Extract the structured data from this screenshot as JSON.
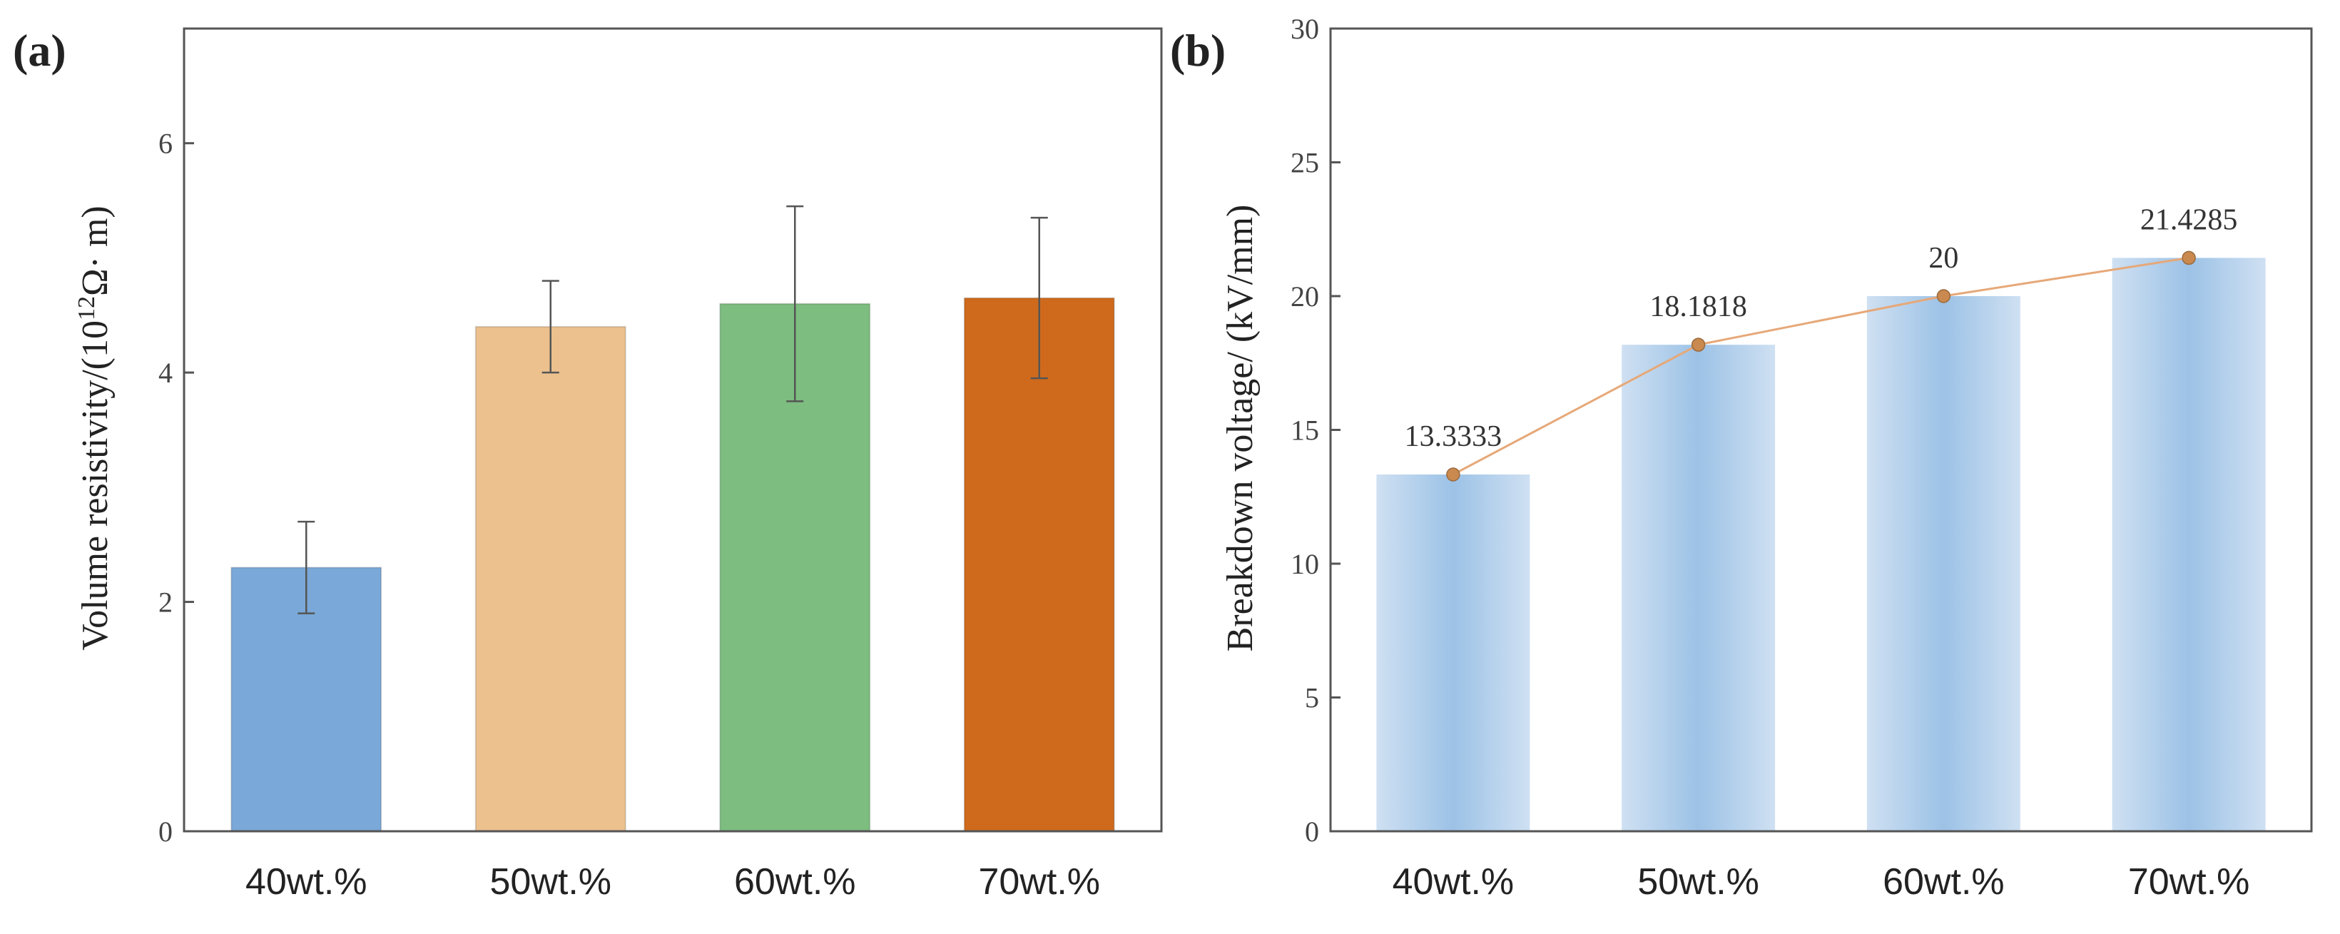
{
  "chart_data": [
    {
      "panel": "(a)",
      "type": "bar",
      "categories": [
        "40wt.%",
        "50wt.%",
        "60wt.%",
        "70wt.%"
      ],
      "values": [
        2.3,
        4.4,
        4.6,
        4.65
      ],
      "errors": [
        0.4,
        0.4,
        0.85,
        0.7
      ],
      "colors": [
        "#7aa8d8",
        "#ecc18e",
        "#7dbd80",
        "#cf6a1c"
      ],
      "ylabel_prefix": "Volume resistivity/(10",
      "ylabel_sup": "12",
      "ylabel_suffix": "Ω· m)",
      "ylim": [
        0,
        7
      ],
      "yticks": [
        0,
        2,
        4,
        6
      ],
      "ytick_labels": [
        "0",
        "2",
        "4",
        "6"
      ]
    },
    {
      "panel": "(b)",
      "type": "bar",
      "categories": [
        "40wt.%",
        "50wt.%",
        "60wt.%",
        "70wt.%"
      ],
      "values": [
        13.3333,
        18.1818,
        20,
        21.4285
      ],
      "data_labels": [
        "13.3333",
        "18.1818",
        "20",
        "21.4285"
      ],
      "bar_color": "#a9c9e8",
      "line_color": "#e6a878",
      "marker_color": "#c9894f",
      "ylabel": "Breakdown voltage/ (kV/mm)",
      "ylim": [
        0,
        30
      ],
      "yticks": [
        0,
        5,
        10,
        15,
        20,
        25,
        30
      ],
      "ytick_labels": [
        "0",
        "5",
        "10",
        "15",
        "20",
        "25",
        "30"
      ]
    }
  ]
}
